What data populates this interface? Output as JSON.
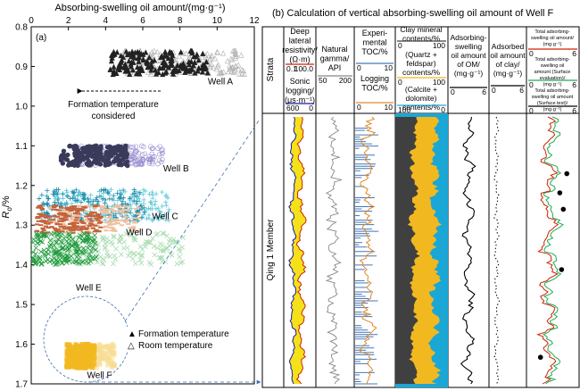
{
  "chart_data": [
    {
      "type": "scatter",
      "panel_label": "(a)",
      "xlabel": "Absorbing-swelling oil amount/(mg·g⁻¹)",
      "ylabel": "Ro/%",
      "ylabel_main": "R",
      "ylabel_sub": "o",
      "ylabel_unit": "/%",
      "xlim": [
        0,
        12
      ],
      "ylim": [
        0.8,
        1.7
      ],
      "x_ticks": [
        "0",
        "2",
        "4",
        "6",
        "8",
        "10",
        "12"
      ],
      "y_ticks": [
        "0.8",
        "0.9",
        "1.0",
        "1.1",
        "1.2",
        "1.3",
        "1.4",
        "1.5",
        "1.6",
        "1.7"
      ],
      "annotation": "Formation temperature considered",
      "annotation_line1": "Formation temperature",
      "annotation_line2": "considered",
      "legend": [
        {
          "symbol": "▲",
          "label": "Formation temperature"
        },
        {
          "symbol": "△",
          "label": "Room temperature"
        }
      ],
      "wells": [
        {
          "name": "Well A",
          "ro_range": [
            0.86,
            0.92
          ],
          "formation_x": [
            4.2,
            9.5
          ],
          "room_x": [
            5.0,
            11.5
          ],
          "color": "#222222",
          "room_color": "#b0b0b0"
        },
        {
          "name": "Well B",
          "ro_range": [
            1.1,
            1.15
          ],
          "formation_x": [
            1.6,
            5.2
          ],
          "room_x": [
            2.5,
            7.2
          ],
          "color": "#3a3a5a",
          "room_color": "#9a8fd0"
        },
        {
          "name": "Well C",
          "ro_range": [
            1.21,
            1.29
          ],
          "formation_x": [
            0.4,
            6.2
          ],
          "room_x": [
            1.2,
            7.5
          ],
          "color": "#1e8aa8",
          "room_color": "#5cc6d8"
        },
        {
          "name": "Well D",
          "ro_range": [
            1.25,
            1.32
          ],
          "formation_x": [
            0.3,
            3.8
          ],
          "room_x": [
            1.0,
            5.8
          ],
          "color": "#c4633a",
          "room_color": "#f0c0a0"
        },
        {
          "name": "Well E",
          "ro_range": [
            1.32,
            1.4
          ],
          "formation_x": [
            0.1,
            3.5
          ],
          "room_x": [
            1.0,
            8.2
          ],
          "color": "#1f9a3c",
          "room_color": "#a8dcb0"
        },
        {
          "name": "Well F",
          "ro_range": [
            1.6,
            1.66
          ],
          "formation_x": [
            1.9,
            3.4
          ],
          "room_x": [
            1.9,
            4.5
          ],
          "color": "#f2b820",
          "room_color": "#f8dc90"
        }
      ]
    },
    {
      "type": "well_log",
      "title": "(b) Calculation of vertical absorbing-swelling oil amount of Well F",
      "strata_header": "Strata",
      "member": "Qing 1 Member",
      "columns": [
        {
          "name": "Deep lateral resistivity/(Ω·m)",
          "lines": [
            "Deep",
            "lateral",
            "resistivity/",
            "(Ω·m)"
          ],
          "scale": [
            "0.1",
            "100.0"
          ],
          "name2_lines": [
            "Sonic",
            "logging/",
            "(μs·m⁻¹)"
          ],
          "scale2": [
            "600",
            "0"
          ]
        },
        {
          "name": "Natural gamma/API",
          "lines": [
            "Natural",
            "gamma/",
            "API"
          ],
          "scale": [
            "50",
            "200"
          ]
        },
        {
          "name": "Experimental TOC/%",
          "lines": [
            "Experi-",
            "mental",
            "TOC/%"
          ],
          "scale": [
            "0",
            "10"
          ],
          "name2_lines": [
            "Logging",
            "TOC/%"
          ],
          "scale2": [
            "0",
            "10"
          ]
        },
        {
          "name": "Clay mineral contents/%",
          "lines": [
            "Clay mineral",
            "contents/%"
          ],
          "scale": [
            "0",
            "100"
          ],
          "lines2": [
            "(Quartz +",
            "feldspar)",
            "contents/%"
          ],
          "scale2": [
            "0",
            "100"
          ],
          "lines3": [
            "(Calcite +",
            "dolomite)",
            "contents/%"
          ],
          "scale3": [
            "100",
            "0"
          ]
        },
        {
          "name": "Adsorbing-swelling oil amount of OM",
          "lines": [
            "Adsorbing-",
            "swelling",
            "oil amount",
            "of OM/",
            "(mg·g⁻¹)"
          ],
          "scale": [
            "0",
            "6"
          ]
        },
        {
          "name": "Adsorbed oil amount of clay",
          "lines": [
            "Adsorbed",
            "oil amount",
            "of clay/",
            "(mg·g⁻¹)"
          ],
          "scale": [
            "0",
            "6"
          ]
        },
        {
          "name": "Total adsorbing-swelling oil amount",
          "lines": [
            "Total adsorbing-",
            "swelling oil amount/",
            "(mg·g⁻¹)"
          ],
          "scale": [
            "0",
            "6"
          ],
          "lines2": [
            "Total adsorbing-",
            "swelling oil",
            "amount (Surface",
            "evaluation)/",
            "(mg·g⁻¹)"
          ],
          "scale2": [
            "0",
            "6"
          ],
          "lines3": [
            "Total adsorbing-",
            "swelling oil amount",
            "(Surface test)/",
            "(mg·g⁻¹)"
          ],
          "scale3": [
            "0",
            "6"
          ]
        }
      ],
      "colors": {
        "resistivity": "#cc2200",
        "sonic": "#1a1a99",
        "resistivity_fill": "#f5e11a",
        "gamma": "#888888",
        "toc_exp": "#4477bb",
        "toc_log": "#e08a2a",
        "clay": "#404040",
        "quartz_feldspar": "#f2b820",
        "carbonate": "#1aa7d6",
        "om_oil": "#000000",
        "clay_oil": "#000000",
        "total1": "#cc2200",
        "total2": "#22aa55",
        "total_test": "#000000"
      },
      "surface_test_points": [
        {
          "depth_frac": 0.22,
          "value": 4.6
        },
        {
          "depth_frac": 0.29,
          "value": 3.8
        },
        {
          "depth_frac": 0.35,
          "value": 4.2
        },
        {
          "depth_frac": 0.57,
          "value": 4.0
        },
        {
          "depth_frac": 0.89,
          "value": 1.6
        }
      ]
    }
  ]
}
